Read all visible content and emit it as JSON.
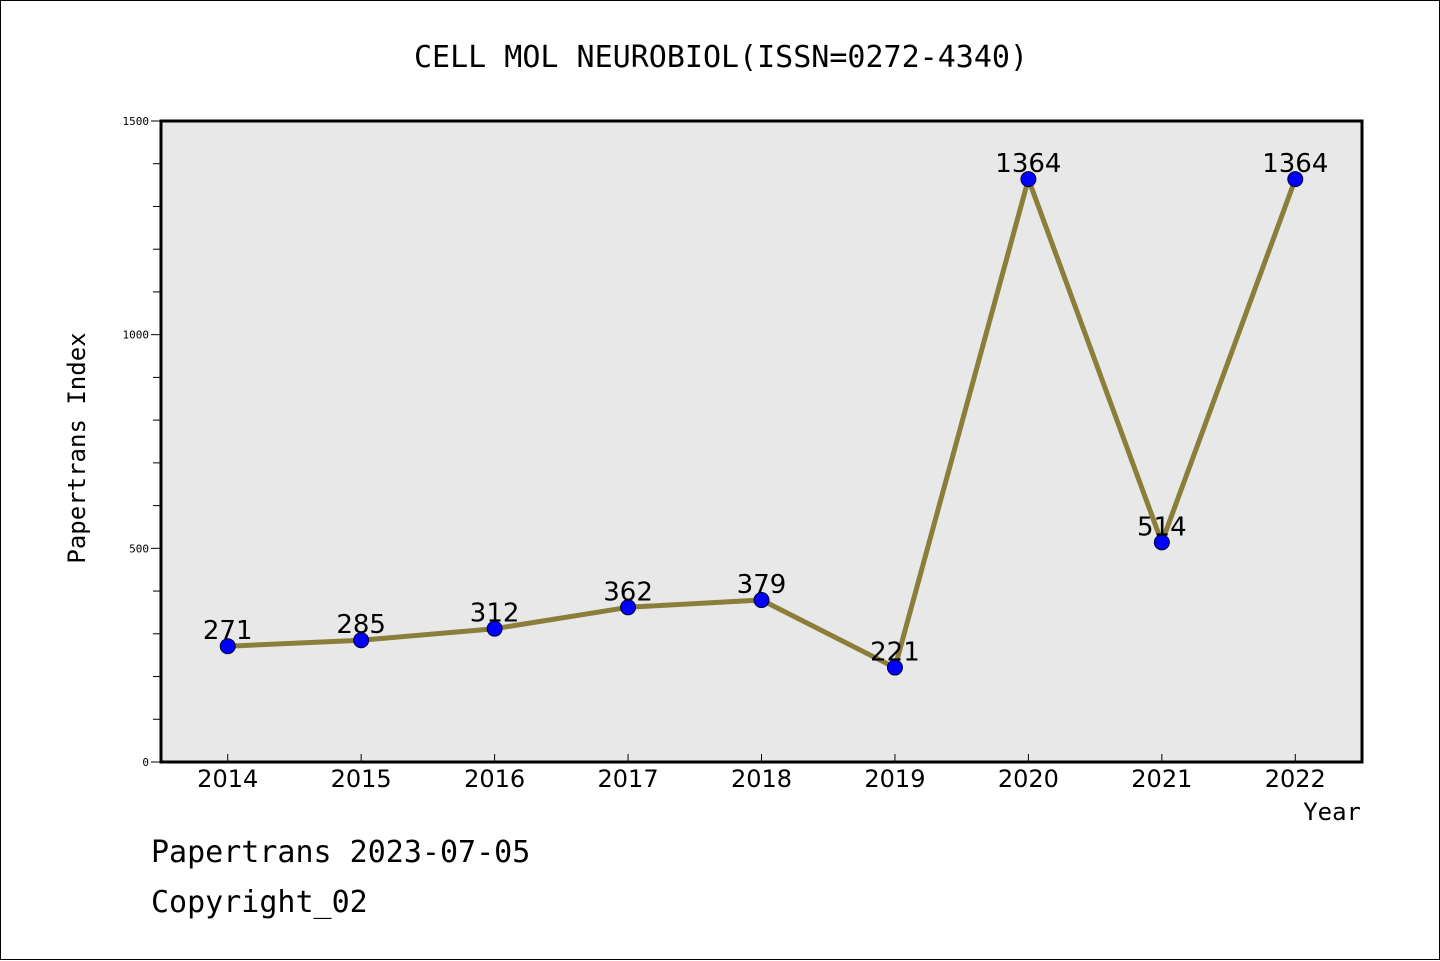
{
  "chart_data": {
    "type": "line",
    "title": "CELL MOL NEUROBIOL(ISSN=0272-4340)",
    "xlabel": "Year",
    "ylabel": "Papertrans Index",
    "categories": [
      "2014",
      "2015",
      "2016",
      "2017",
      "2018",
      "2019",
      "2020",
      "2021",
      "2022"
    ],
    "series": [
      {
        "values": [
          271,
          285,
          312,
          362,
          379,
          221,
          1364,
          514,
          1364
        ]
      }
    ],
    "data_labels": [
      "271",
      "285",
      "312",
      "362",
      "379",
      "221",
      "1364",
      "514",
      "1364"
    ],
    "ylim": [
      0,
      1500
    ],
    "y_major_ticks": [
      0,
      500,
      1000,
      1500
    ],
    "y_tick_labels": [
      "0",
      "500",
      "1000",
      "1500"
    ],
    "y_minor_step": 100,
    "grid": false,
    "colors": {
      "line": "#8b7d3a",
      "marker": "#0000ff",
      "plot_background": "#e8e8e8",
      "axis": "#000000"
    }
  },
  "footer": {
    "date_text": "Papertrans 2023-07-05",
    "copyright_text": "Copyright_02"
  }
}
